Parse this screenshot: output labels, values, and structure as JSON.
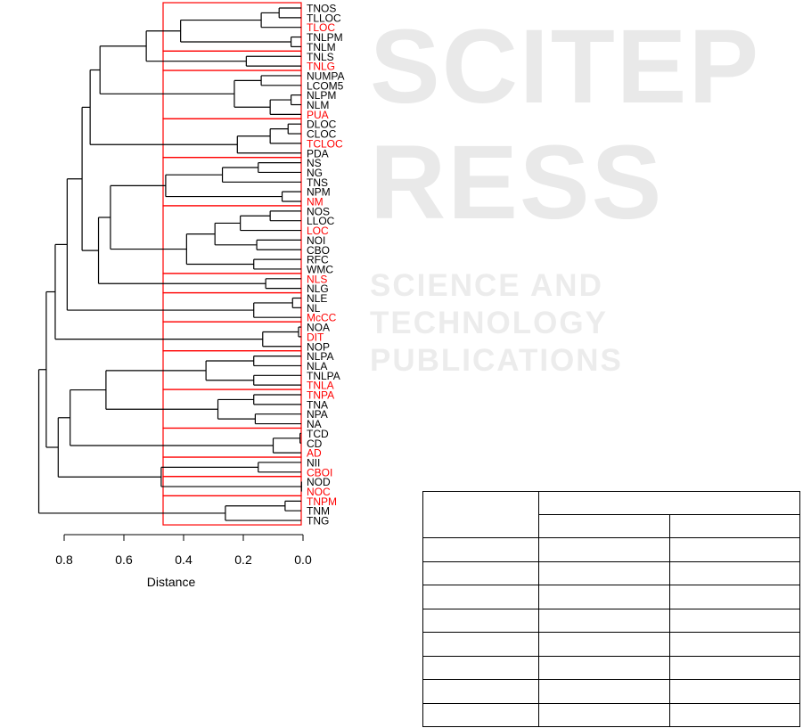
{
  "watermark": {
    "main": "SCITEPRESS",
    "sub": "SCIENCE AND TECHNOLOGY PUBLICATIONS"
  },
  "chart_data": {
    "type": "dendrogram",
    "xlabel": "Distance",
    "xlim": [
      0.8,
      0.0
    ],
    "x_ticks": [
      "0.8",
      "0.6",
      "0.4",
      "0.2",
      "0.0"
    ],
    "x_tick_values": [
      0.8,
      0.6,
      0.4,
      0.2,
      0.0
    ],
    "cut_height": 0.47,
    "colors": {
      "line": "#000000",
      "highlight": "#ff0000",
      "box": "#ff0000"
    },
    "leaves": [
      {
        "label": "TNOS",
        "highlighted": false
      },
      {
        "label": "TLLOC",
        "highlighted": false
      },
      {
        "label": "TLOC",
        "highlighted": true
      },
      {
        "label": "TNLPM",
        "highlighted": false
      },
      {
        "label": "TNLM",
        "highlighted": false
      },
      {
        "label": "TNLS",
        "highlighted": false
      },
      {
        "label": "TNLG",
        "highlighted": true
      },
      {
        "label": "NUMPA",
        "highlighted": false
      },
      {
        "label": "LCOM5",
        "highlighted": false
      },
      {
        "label": "NLPM",
        "highlighted": false
      },
      {
        "label": "NLM",
        "highlighted": false
      },
      {
        "label": "PUA",
        "highlighted": true
      },
      {
        "label": "DLOC",
        "highlighted": false
      },
      {
        "label": "CLOC",
        "highlighted": false
      },
      {
        "label": "TCLOC",
        "highlighted": true
      },
      {
        "label": "PDA",
        "highlighted": false
      },
      {
        "label": "NS",
        "highlighted": false
      },
      {
        "label": "NG",
        "highlighted": false
      },
      {
        "label": "TNS",
        "highlighted": false
      },
      {
        "label": "NPM",
        "highlighted": false
      },
      {
        "label": "NM",
        "highlighted": true
      },
      {
        "label": "NOS",
        "highlighted": false
      },
      {
        "label": "LLOC",
        "highlighted": false
      },
      {
        "label": "LOC",
        "highlighted": true
      },
      {
        "label": "NOI",
        "highlighted": false
      },
      {
        "label": "CBO",
        "highlighted": false
      },
      {
        "label": "RFC",
        "highlighted": false
      },
      {
        "label": "WMC",
        "highlighted": false
      },
      {
        "label": "NLS",
        "highlighted": true
      },
      {
        "label": "NLG",
        "highlighted": false
      },
      {
        "label": "NLE",
        "highlighted": false
      },
      {
        "label": "NL",
        "highlighted": false
      },
      {
        "label": "McCC",
        "highlighted": true
      },
      {
        "label": "NOA",
        "highlighted": false
      },
      {
        "label": "DIT",
        "highlighted": true
      },
      {
        "label": "NOP",
        "highlighted": false
      },
      {
        "label": "NLPA",
        "highlighted": false
      },
      {
        "label": "NLA",
        "highlighted": false
      },
      {
        "label": "TNLPA",
        "highlighted": false
      },
      {
        "label": "TNLA",
        "highlighted": true
      },
      {
        "label": "TNPA",
        "highlighted": true
      },
      {
        "label": "TNA",
        "highlighted": false
      },
      {
        "label": "NPA",
        "highlighted": false
      },
      {
        "label": "NA",
        "highlighted": false
      },
      {
        "label": "TCD",
        "highlighted": false
      },
      {
        "label": "CD",
        "highlighted": false
      },
      {
        "label": "AD",
        "highlighted": true
      },
      {
        "label": "NII",
        "highlighted": false
      },
      {
        "label": "CBOI",
        "highlighted": true
      },
      {
        "label": "NOD",
        "highlighted": false
      },
      {
        "label": "NOC",
        "highlighted": true
      },
      {
        "label": "TNPM",
        "highlighted": true
      },
      {
        "label": "TNM",
        "highlighted": false
      },
      {
        "label": "TNG",
        "highlighted": false
      }
    ],
    "tree": [
      0.885,
      [
        0.86,
        [
          0.83,
          [
            0.79,
            [
              0.74,
              [
                0.713,
                [
                  0.68,
                  [
                    0.525,
                    [
                      0.41,
                      [
                        0.14,
                        [
                          0.08,
                          0,
                          1
                        ],
                        2
                      ],
                      [
                        0.04,
                        3,
                        4
                      ]
                    ],
                    [
                      0.19,
                      5,
                      6
                    ]
                  ],
                  [
                    0.23,
                    [
                      0.14,
                      7,
                      8
                    ],
                    [
                      0.11,
                      [
                        0.04,
                        9,
                        10
                      ],
                      11
                    ]
                  ]
                ],
                [
                  0.22,
                  [
                    0.11,
                    [
                      0.05,
                      12,
                      13
                    ],
                    14
                  ],
                  15
                ]
              ],
              [
                0.685,
                [
                  0.645,
                  [
                    0.46,
                    [
                      0.27,
                      [
                        0.15,
                        16,
                        17
                      ],
                      18
                    ],
                    [
                      0.07,
                      19,
                      20
                    ]
                  ],
                  [
                    0.39,
                    [
                      0.295,
                      [
                        0.21,
                        [
                          0.11,
                          21,
                          22
                        ],
                        23
                      ],
                      [
                        0.155,
                        24,
                        25
                      ]
                    ],
                    [
                      0.165,
                      26,
                      27
                    ]
                  ]
                ],
                [
                  0.125,
                  28,
                  29
                ]
              ]
            ],
            [
              0.165,
              [
                0.035,
                30,
                31
              ],
              32
            ]
          ],
          [
            0.135,
            [
              0.015,
              33,
              34
            ],
            35
          ]
        ],
        [
          0.82,
          [
            0.78,
            [
              0.66,
              [
                0.325,
                [
                  0.165,
                  36,
                  37
                ],
                [
                  0.165,
                  38,
                  39
                ]
              ],
              [
                0.285,
                [
                  0.165,
                  40,
                  41
                ],
                [
                  0.16,
                  42,
                  43
                ]
              ]
            ],
            [
              0.1,
              [
                0.01,
                44,
                45
              ],
              46
            ]
          ],
          [
            0.475,
            [
              0.15,
              47,
              48
            ],
            [
              0.005,
              49,
              50
            ]
          ]
        ]
      ],
      [
        0.26,
        [
          0.06,
          51,
          52
        ],
        53
      ]
    ]
  },
  "table": {
    "body_rows": 8
  }
}
